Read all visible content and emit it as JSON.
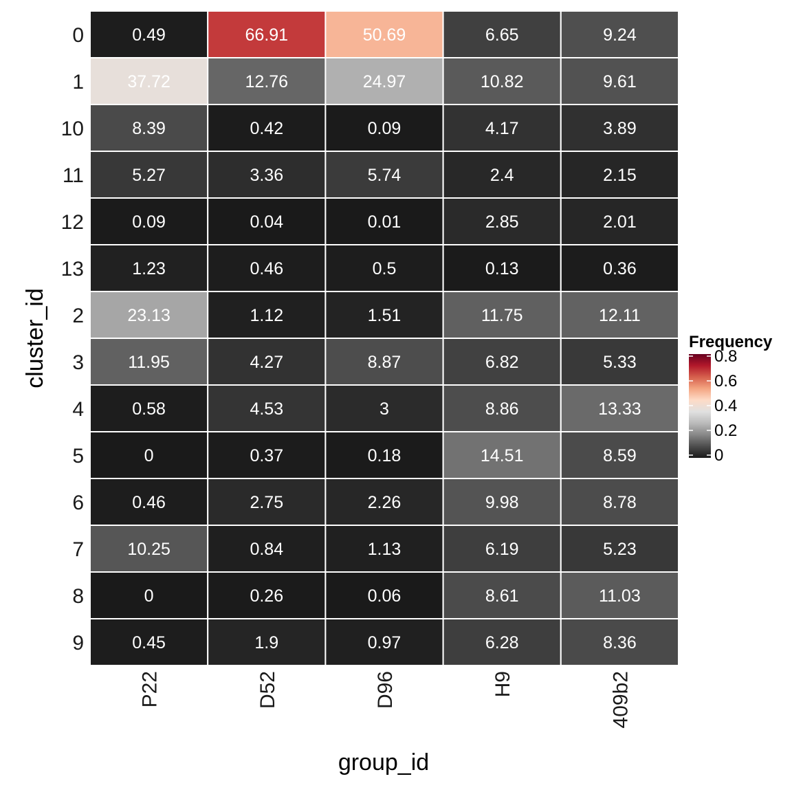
{
  "chart_data": {
    "type": "heatmap",
    "xlabel": "group_id",
    "ylabel": "cluster_id",
    "x_categories": [
      "P22",
      "D52",
      "D96",
      "H9",
      "409b2"
    ],
    "y_categories": [
      "0",
      "1",
      "10",
      "11",
      "12",
      "13",
      "2",
      "3",
      "4",
      "5",
      "6",
      "7",
      "8",
      "9"
    ],
    "values": [
      [
        0.49,
        66.91,
        50.69,
        6.65,
        9.24
      ],
      [
        37.72,
        12.76,
        24.97,
        10.82,
        9.61
      ],
      [
        8.39,
        0.42,
        0.09,
        4.17,
        3.89
      ],
      [
        5.27,
        3.36,
        5.74,
        2.4,
        2.15
      ],
      [
        0.09,
        0.04,
        0.01,
        2.85,
        2.01
      ],
      [
        1.23,
        0.46,
        0.5,
        0.13,
        0.36
      ],
      [
        23.13,
        1.12,
        1.51,
        11.75,
        12.11
      ],
      [
        11.95,
        4.27,
        8.87,
        6.82,
        5.33
      ],
      [
        0.58,
        4.53,
        3,
        8.86,
        13.33
      ],
      [
        0,
        0.37,
        0.18,
        14.51,
        8.59
      ],
      [
        0.46,
        2.75,
        2.26,
        9.98,
        8.78
      ],
      [
        10.25,
        0.84,
        1.13,
        6.19,
        5.23
      ],
      [
        0,
        0.26,
        0.06,
        8.61,
        11.03
      ],
      [
        0.45,
        1.9,
        0.97,
        6.28,
        8.36
      ]
    ],
    "cell_labels": [
      [
        "0.49",
        "66.91",
        "50.69",
        "6.65",
        "9.24"
      ],
      [
        "37.72",
        "12.76",
        "24.97",
        "10.82",
        "9.61"
      ],
      [
        "8.39",
        "0.42",
        "0.09",
        "4.17",
        "3.89"
      ],
      [
        "5.27",
        "3.36",
        "5.74",
        "2.4",
        "2.15"
      ],
      [
        "0.09",
        "0.04",
        "0.01",
        "2.85",
        "2.01"
      ],
      [
        "1.23",
        "0.46",
        "0.5",
        "0.13",
        "0.36"
      ],
      [
        "23.13",
        "1.12",
        "1.51",
        "11.75",
        "12.11"
      ],
      [
        "11.95",
        "4.27",
        "8.87",
        "6.82",
        "5.33"
      ],
      [
        "0.58",
        "4.53",
        "3",
        "8.86",
        "13.33"
      ],
      [
        "0",
        "0.37",
        "0.18",
        "14.51",
        "8.59"
      ],
      [
        "0.46",
        "2.75",
        "2.26",
        "9.98",
        "8.78"
      ],
      [
        "10.25",
        "0.84",
        "1.13",
        "6.19",
        "5.23"
      ],
      [
        "0",
        "0.26",
        "0.06",
        "8.61",
        "11.03"
      ],
      [
        "0.45",
        "1.9",
        "0.97",
        "6.28",
        "8.36"
      ]
    ],
    "legend": {
      "title": "Frequency",
      "placement": "right",
      "range": [
        0,
        0.8
      ],
      "ticks": [
        0,
        0.2,
        0.4,
        0.6,
        0.8
      ],
      "tick_labels": [
        "0",
        "0.2",
        "0.4",
        "0.6",
        "0.8"
      ],
      "colors": [
        "#1a1a1a",
        "#4d4d4d",
        "#878787",
        "#bababa",
        "#e0e0e0",
        "#fddbc7",
        "#f4a582",
        "#d6604d",
        "#b2182b",
        "#67001f"
      ]
    },
    "grid": false,
    "cell_border_color": "#ffffff"
  }
}
